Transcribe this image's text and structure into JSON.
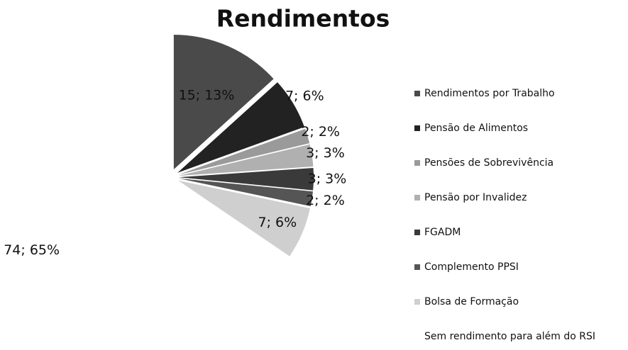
{
  "chart_data": {
    "type": "pie",
    "title": "Rendimentos",
    "categories": [
      "Rendimentos por Trabalho",
      "Pensão de Alimentos",
      "Pensões de Sobrevivência",
      "Pensão por Invalidez",
      "FGADM",
      "Complemento PPSI",
      "Bolsa de Formação",
      "Sem rendimento para além do RSI"
    ],
    "values": [
      15,
      7,
      2,
      3,
      3,
      2,
      7,
      74
    ],
    "value_labels": [
      "15; 13%",
      "7; 6%",
      "2; 2%",
      "3; 3%",
      "3; 3%",
      "2; 2%",
      "7; 6%",
      "74; 65%"
    ],
    "colors": [
      "#4a4a4a",
      "#222222",
      "#9a9a9a",
      "#b0b0b0",
      "#3a3a3a",
      "#555555",
      "#cfcfcf",
      "#ffffff"
    ],
    "legend": "right"
  }
}
